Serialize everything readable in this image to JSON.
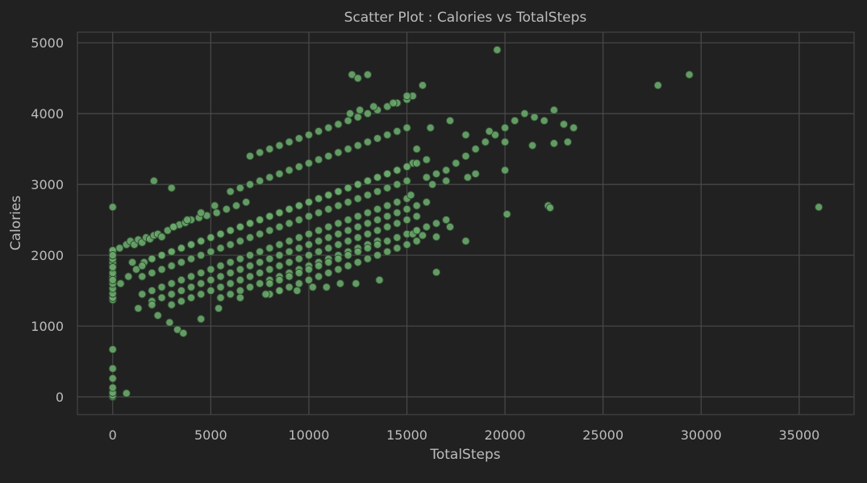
{
  "chart_data": {
    "type": "scatter",
    "title": "Scatter Plot : Calories vs TotalSteps",
    "xlabel": "TotalSteps",
    "ylabel": "Calories",
    "xlim": [
      -1800,
      37800
    ],
    "ylim": [
      -250,
      5150
    ],
    "x_ticks": [
      0,
      5000,
      10000,
      15000,
      20000,
      25000,
      30000,
      35000
    ],
    "y_ticks": [
      0,
      1000,
      2000,
      3000,
      4000,
      5000
    ],
    "grid": true,
    "colors": {
      "background": "#212121",
      "grid": "#4a4a4a",
      "spine": "#4a4a4a",
      "text": "#bdbdbd",
      "point_fill": "#6aa86c",
      "point_edge": "#2f4a30"
    },
    "points": {
      "x": [
        0,
        0,
        0,
        0,
        0,
        0,
        0,
        0,
        0,
        0,
        0,
        0,
        0,
        0,
        0,
        0,
        0,
        0,
        0,
        0,
        0,
        0,
        0,
        0,
        700,
        0,
        0,
        350,
        700,
        900,
        1100,
        1300,
        1500,
        1700,
        1900,
        2100,
        2300,
        2500,
        2800,
        3100,
        3400,
        3700,
        4000,
        4400,
        4800,
        5300,
        5800,
        6300,
        6800,
        400,
        800,
        1200,
        1600,
        2000,
        2500,
        3000,
        3500,
        4000,
        4500,
        5000,
        5500,
        6000,
        6500,
        7000,
        7500,
        8000,
        8500,
        9000,
        9500,
        10000,
        10500,
        11000,
        11500,
        12000,
        12500,
        13000,
        13500,
        14000,
        14500,
        15000,
        15300,
        1000,
        1500,
        2000,
        2500,
        3000,
        3500,
        4000,
        4500,
        5000,
        5500,
        6000,
        6500,
        7000,
        7500,
        8000,
        8500,
        9000,
        9500,
        10000,
        10500,
        11000,
        11500,
        12000,
        12500,
        13000,
        13500,
        14000,
        14500,
        15000,
        15500,
        16000,
        1500,
        2000,
        2500,
        3000,
        3500,
        4000,
        4500,
        5000,
        5500,
        6000,
        6500,
        7000,
        7500,
        8000,
        8500,
        9000,
        9500,
        10000,
        10500,
        11000,
        11500,
        12000,
        12500,
        13000,
        13500,
        14000,
        14500,
        15000,
        1500,
        2000,
        2500,
        3000,
        3500,
        4000,
        4500,
        5000,
        5500,
        6000,
        6500,
        7000,
        7500,
        8000,
        8500,
        9000,
        9500,
        10000,
        10500,
        11000,
        11500,
        12000,
        12500,
        13000,
        13500,
        14000,
        14500,
        15000,
        15200,
        2000,
        2500,
        3000,
        3500,
        4000,
        4500,
        5000,
        5500,
        6000,
        6500,
        7000,
        7500,
        8000,
        8500,
        9000,
        9500,
        10000,
        10500,
        11000,
        11500,
        12000,
        12500,
        13000,
        13500,
        14000,
        14500,
        15000,
        15500,
        16000,
        3000,
        3500,
        4000,
        4500,
        5000,
        5500,
        6000,
        6500,
        7000,
        7500,
        8000,
        8500,
        9000,
        9500,
        10000,
        10500,
        11000,
        11500,
        12000,
        12500,
        13000,
        13500,
        14000,
        14500,
        15000,
        15500,
        5500,
        6000,
        6500,
        7000,
        7500,
        8000,
        8500,
        9000,
        9500,
        10000,
        10500,
        11000,
        11500,
        12000,
        12500,
        13000,
        13500,
        8000,
        8500,
        9000,
        9500,
        10000,
        10500,
        11000,
        11500,
        12000,
        12500,
        13000,
        13500,
        14000,
        14500,
        15000,
        15500,
        6000,
        6500,
        7000,
        7500,
        8000,
        8500,
        9000,
        9500,
        10000,
        10500,
        11000,
        11500,
        12000,
        12500,
        13000,
        13500,
        14000,
        14500,
        15000,
        8000,
        8500,
        9000,
        9500,
        10000,
        10500,
        11000,
        11500,
        12000,
        12500,
        13000,
        13500,
        14000,
        14500,
        15000,
        15500,
        16000,
        16500,
        17000,
        7000,
        7500,
        8000,
        8500,
        9000,
        9500,
        10000,
        10500,
        11000,
        11500,
        12000,
        12500,
        13000,
        13500,
        14000,
        14500,
        15000,
        15300,
        1300,
        2300,
        2900,
        3300,
        3600,
        4500,
        5400,
        6500,
        7800,
        8500,
        9400,
        10200,
        10900,
        11600,
        12400,
        13600,
        2000,
        2100,
        3000,
        3100,
        3800,
        4500,
        5200,
        12100,
        12600,
        13300,
        14300,
        15000,
        15800,
        12200,
        12500,
        13000,
        16000,
        16500,
        17000,
        17500,
        18000,
        18500,
        19000,
        19500,
        20000,
        20500,
        21000,
        21500,
        22000,
        22500,
        23000,
        23500,
        15500,
        16200,
        17200,
        18000,
        19200,
        20000,
        21400,
        22500,
        23200,
        16300,
        17000,
        18100,
        18500,
        20000,
        22200,
        15300,
        15500,
        15800,
        16500,
        17200,
        18000,
        27800,
        29400,
        36000,
        19600,
        22300,
        20100,
        16500
      ],
      "y": [
        0,
        20,
        60,
        130,
        260,
        400,
        670,
        1370,
        1400,
        1460,
        1530,
        1600,
        1680,
        1700,
        1750,
        1850,
        1900,
        1950,
        2000,
        2030,
        2050,
        2070,
        2680,
        2000,
        50,
        1830,
        1650,
        2100,
        2150,
        2200,
        2150,
        2220,
        2180,
        2250,
        2230,
        2280,
        2300,
        2260,
        2350,
        2400,
        2430,
        2460,
        2500,
        2530,
        2560,
        2600,
        2650,
        2700,
        2750,
        1600,
        1700,
        1800,
        1900,
        1950,
        2000,
        2050,
        2100,
        2150,
        2200,
        2250,
        2300,
        2350,
        2400,
        2450,
        2500,
        2550,
        2600,
        2650,
        2700,
        2750,
        2800,
        2850,
        2900,
        2950,
        3000,
        3050,
        3100,
        3150,
        3200,
        3250,
        3300,
        1900,
        1850,
        1950,
        2000,
        2050,
        2100,
        2150,
        2200,
        2250,
        2300,
        2350,
        2400,
        2450,
        2500,
        2550,
        2600,
        2650,
        2700,
        2750,
        2800,
        2850,
        2900,
        2950,
        3000,
        3050,
        3100,
        3150,
        3200,
        3250,
        3300,
        3350,
        1700,
        1750,
        1800,
        1850,
        1900,
        1950,
        2000,
        2050,
        2100,
        2150,
        2200,
        2250,
        2300,
        2350,
        2400,
        2450,
        2500,
        2550,
        2600,
        2650,
        2700,
        2750,
        2800,
        2850,
        2900,
        2950,
        3000,
        3050,
        1450,
        1500,
        1550,
        1600,
        1650,
        1700,
        1750,
        1800,
        1850,
        1900,
        1950,
        2000,
        2050,
        2100,
        2150,
        2200,
        2250,
        2300,
        2350,
        2400,
        2450,
        2500,
        2550,
        2600,
        2650,
        2700,
        2750,
        2800,
        2850,
        1350,
        1400,
        1450,
        1500,
        1550,
        1600,
        1650,
        1700,
        1750,
        1800,
        1850,
        1900,
        1950,
        2000,
        2050,
        2100,
        2150,
        2200,
        2250,
        2300,
        2350,
        2400,
        2450,
        2500,
        2550,
        2600,
        2650,
        2700,
        2750,
        1300,
        1350,
        1400,
        1450,
        1500,
        1550,
        1600,
        1650,
        1700,
        1750,
        1800,
        1850,
        1900,
        1950,
        2000,
        2050,
        2100,
        2150,
        2200,
        2250,
        2300,
        2350,
        2400,
        2450,
        2500,
        2550,
        1400,
        1450,
        1500,
        1550,
        1600,
        1650,
        1700,
        1750,
        1800,
        1850,
        1900,
        1950,
        2000,
        2050,
        2100,
        2150,
        2200,
        1450,
        1500,
        1550,
        1600,
        1650,
        1700,
        1750,
        1800,
        1850,
        1900,
        1950,
        2000,
        2050,
        2100,
        2150,
        2200,
        2900,
        2950,
        3000,
        3050,
        3100,
        3150,
        3200,
        3250,
        3300,
        3350,
        3400,
        3450,
        3500,
        3550,
        3600,
        3650,
        3700,
        3750,
        3800,
        1600,
        1650,
        1700,
        1750,
        1800,
        1850,
        1900,
        1950,
        2000,
        2050,
        2100,
        2150,
        2200,
        2250,
        2300,
        2350,
        2400,
        2450,
        2500,
        3400,
        3450,
        3500,
        3550,
        3600,
        3650,
        3700,
        3750,
        3800,
        3850,
        3900,
        3950,
        4000,
        4050,
        4100,
        4150,
        4200,
        4250,
        1250,
        1150,
        1050,
        950,
        900,
        1100,
        1250,
        1400,
        1450,
        1500,
        1500,
        1550,
        1550,
        1600,
        1600,
        1650,
        1300,
        3050,
        2950,
        2400,
        2500,
        2600,
        2700,
        4000,
        4050,
        4100,
        4150,
        4250,
        4400,
        4550,
        4500,
        4550,
        3100,
        3150,
        3200,
        3300,
        3400,
        3500,
        3600,
        3700,
        3800,
        3900,
        4000,
        3950,
        3900,
        4050,
        3850,
        3800,
        3500,
        3800,
        3900,
        3700,
        3750,
        3600,
        3550,
        3580,
        3600,
        3000,
        3050,
        3100,
        3150,
        3200,
        2700,
        2300,
        2350,
        2280,
        2260,
        2400,
        2200,
        4400,
        4550,
        2680,
        4900,
        2670,
        2580,
        1760
      ]
    }
  }
}
